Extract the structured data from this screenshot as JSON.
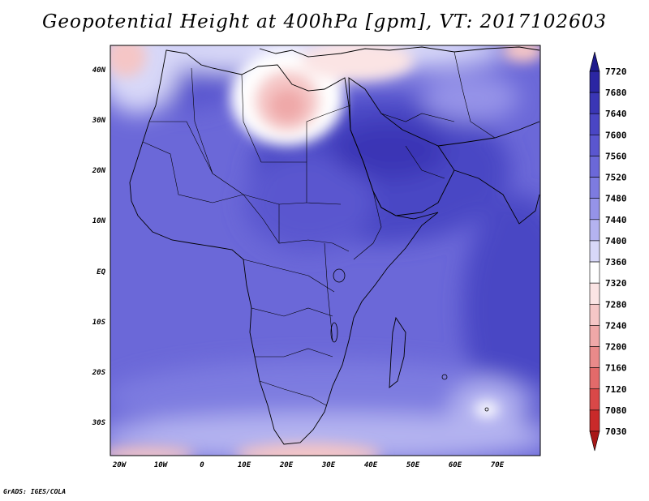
{
  "title": "Geopotential Height at 400hPa [gpm], VT: 2017102603",
  "credit": "GrADS: IGES/COLA",
  "lat_labels": [
    "40N",
    "30N",
    "20N",
    "10N",
    "EQ",
    "10S",
    "20S",
    "30S"
  ],
  "lon_labels": [
    "20W",
    "10W",
    "0",
    "10E",
    "20E",
    "30E",
    "40E",
    "50E",
    "60E",
    "70E"
  ],
  "colorbar": {
    "levels": [
      "7720",
      "7680",
      "7640",
      "7600",
      "7560",
      "7520",
      "7480",
      "7440",
      "7400",
      "7360",
      "7320",
      "7280",
      "7240",
      "7200",
      "7160",
      "7120",
      "7080",
      "7030"
    ],
    "colors": [
      "#1e1a8c",
      "#2b26a3",
      "#3a36b5",
      "#4a46c4",
      "#5a56cf",
      "#6b68d8",
      "#7d7be0",
      "#9593e8",
      "#b4b3f0",
      "#d8d8f8",
      "#ffffff",
      "#fbe4e4",
      "#f5c6c6",
      "#efa8a8",
      "#e98a8a",
      "#e36a6a",
      "#d94848",
      "#c92a2a",
      "#a81818"
    ]
  },
  "map": {
    "field": "Geopotential Height at 400hPa",
    "units": "gpm",
    "valid_time": "2017102603",
    "projection": "lat-lon",
    "lon_range": [
      -22,
      80
    ],
    "lat_range": [
      -37,
      44
    ],
    "features": [
      "Mediterranean cut-off low (pink/red) near 30N 20E",
      "Ridge (deep blue) over Arabian Peninsula",
      "Higher heights (dark blue) over Indian Ocean",
      "Lower heights (pink) in far south"
    ]
  }
}
